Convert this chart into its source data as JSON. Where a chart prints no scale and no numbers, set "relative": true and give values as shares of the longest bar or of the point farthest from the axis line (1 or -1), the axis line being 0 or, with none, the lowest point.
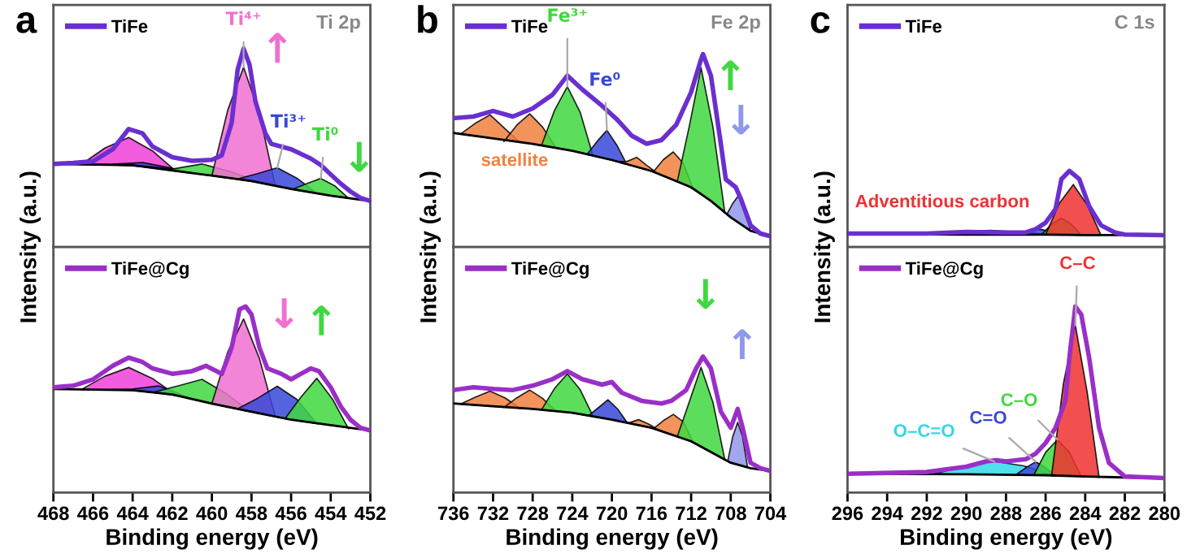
{
  "chart_data": [
    {
      "type": "line",
      "relative": true,
      "xlim": [
        468,
        452
      ],
      "xticks": [
        468,
        466,
        464,
        462,
        460,
        458,
        456,
        454,
        452
      ],
      "tick_labels": false,
      "legend": "top left",
      "annotations": [
        "a",
        "Ti 2p",
        {
          "text": "Ti⁴⁺",
          "x": 458.4,
          "y": 0.906
        },
        {
          "text": "↑",
          "x": 458.4,
          "y": 0.906
        },
        {
          "text": "Ti³⁺",
          "x": 456.7,
          "y": 0.4
        },
        {
          "text": "Ti⁰",
          "x": 454.5,
          "y": 0.346
        },
        {
          "text": "↓",
          "x": 454.5,
          "y": 0.346
        }
      ],
      "series": [
        {
          "name": "TiFe",
          "color": "#6a2fd0",
          "x": [
            468,
            467,
            466,
            465,
            464.2,
            463.5,
            463,
            462,
            461,
            460,
            459.5,
            459,
            458.7,
            458.4,
            458.1,
            457.8,
            457.3,
            457,
            456,
            455,
            454.5,
            454,
            453.5,
            453,
            452.5,
            452
          ],
          "values": [
            0.419,
            0.424,
            0.432,
            0.493,
            0.595,
            0.573,
            0.507,
            0.453,
            0.435,
            0.44,
            0.462,
            0.627,
            0.893,
            1,
            0.92,
            0.734,
            0.573,
            0.52,
            0.493,
            0.446,
            0.413,
            0.366,
            0.32,
            0.28,
            0.248,
            0.232
          ]
        },
        {
          "type": "line",
          "color": "#000000",
          "x": [
            468,
            464,
            462,
            460,
            458,
            456,
            454,
            452
          ],
          "values": [
            0.419,
            0.413,
            0.386,
            0.36,
            0.333,
            0.293,
            0.259,
            0.232
          ]
        },
        {
          "type": "area",
          "color": "#f040d8",
          "x": [
            466.6,
            465.4,
            464.2,
            463.0,
            461.8
          ],
          "values": [
            0.416,
            0.499,
            0.552,
            0.485,
            0.381
          ]
        },
        {
          "type": "area",
          "color": "#3848d8",
          "x": [
            466,
            465,
            463.5,
            462,
            461
          ],
          "values": [
            0.416,
            0.418,
            0.426,
            0.397,
            0.373
          ]
        },
        {
          "type": "area",
          "color": "#40d840",
          "x": [
            463.5,
            462,
            460.5,
            459,
            457.5
          ],
          "values": [
            0.409,
            0.393,
            0.419,
            0.378,
            0.324
          ]
        },
        {
          "type": "area",
          "color": "#f070d0",
          "x": [
            460,
            459.2,
            458.4,
            457.6,
            456.8
          ],
          "values": [
            0.36,
            0.69,
            0.906,
            0.674,
            0.309
          ]
        },
        {
          "type": "area",
          "color": "#3848d8",
          "x": [
            458.7,
            457.7,
            456.7,
            455.7,
            454.7
          ],
          "values": [
            0.343,
            0.37,
            0.4,
            0.347,
            0.27
          ]
        },
        {
          "type": "area",
          "color": "#40d840",
          "x": [
            455.9,
            455.2,
            454.5,
            453.8,
            453.1
          ],
          "values": [
            0.292,
            0.32,
            0.346,
            0.309,
            0.246
          ]
        }
      ]
    },
    {
      "type": "line",
      "relative": true,
      "xlim": [
        468,
        452
      ],
      "xticks": [
        468,
        466,
        464,
        462,
        460,
        458,
        456,
        454,
        452
      ],
      "tick_labels": "x",
      "xlabel": "Binding energy (eV)",
      "ylabel": "Intensity (a.u.)",
      "legend": "top left",
      "annotations": [
        {
          "text": "↓",
          "x": 458.4,
          "y": 0.933
        },
        {
          "text": "↑",
          "x": 454.7,
          "y": 0.614
        }
      ],
      "series": [
        {
          "name": "TiFe@Cg",
          "color": "#9a2fc8",
          "x": [
            468,
            467,
            466,
            465,
            464.2,
            463.5,
            463,
            462,
            461,
            460.3,
            459.5,
            459,
            458.6,
            458.3,
            458,
            457.6,
            457.2,
            456.5,
            456,
            455.5,
            455,
            454.6,
            454,
            453.5,
            453,
            452.5,
            452
          ],
          "values": [
            0.565,
            0.574,
            0.608,
            0.681,
            0.725,
            0.701,
            0.667,
            0.638,
            0.652,
            0.681,
            0.638,
            0.779,
            0.985,
            1,
            0.957,
            0.779,
            0.667,
            0.638,
            0.608,
            0.638,
            0.667,
            0.652,
            0.565,
            0.464,
            0.391,
            0.348,
            0.333
          ]
        },
        {
          "type": "line",
          "color": "#000000",
          "x": [
            468,
            464,
            462,
            460,
            458,
            456,
            454,
            452
          ],
          "values": [
            0.556,
            0.55,
            0.527,
            0.478,
            0.434,
            0.391,
            0.362,
            0.333
          ]
        },
        {
          "type": "area",
          "color": "#f040d8",
          "x": [
            466.6,
            465.4,
            464.2,
            463.0,
            461.8
          ],
          "values": [
            0.553,
            0.625,
            0.672,
            0.613,
            0.522
          ]
        },
        {
          "type": "area",
          "color": "#3848d8",
          "x": [
            465.5,
            464,
            462.7,
            462,
            461
          ],
          "values": [
            0.552,
            0.556,
            0.573,
            0.546,
            0.502
          ]
        },
        {
          "type": "area",
          "color": "#40d840",
          "x": [
            462.9,
            461.7,
            460.5,
            459.3,
            458.1
          ],
          "values": [
            0.54,
            0.573,
            0.608,
            0.533,
            0.436
          ]
        },
        {
          "type": "area",
          "color": "#f070d0",
          "x": [
            460,
            459.2,
            458.4,
            457.6,
            456.8
          ],
          "values": [
            0.478,
            0.755,
            0.933,
            0.72,
            0.408
          ]
        },
        {
          "type": "area",
          "color": "#3848d8",
          "x": [
            458.7,
            457.7,
            456.7,
            455.7,
            454.7
          ],
          "values": [
            0.45,
            0.506,
            0.571,
            0.5,
            0.369
          ]
        },
        {
          "type": "area",
          "color": "#40d840",
          "x": [
            456.3,
            455.5,
            454.7,
            453.9,
            453.1
          ],
          "values": [
            0.398,
            0.513,
            0.614,
            0.5,
            0.342
          ]
        }
      ]
    },
    {
      "type": "line",
      "relative": true,
      "xlim": [
        736,
        704
      ],
      "xticks": [
        736,
        732,
        728,
        724,
        720,
        716,
        712,
        708,
        704
      ],
      "tick_labels": false,
      "legend": "top left",
      "annotations": [
        "b",
        "Fe 2p",
        {
          "text": "Fe³⁺",
          "x": 724.5,
          "y": 0.831
        },
        {
          "text": "Fe⁰",
          "x": 720.5,
          "y": 0.605
        },
        {
          "text": "satellite",
          "x": 735.3,
          "y": 0.585
        },
        {
          "text": "↑",
          "x": 711,
          "y": 0.929
        },
        {
          "text": "↓",
          "x": 707.2,
          "y": 0.268
        }
      ],
      "series": [
        {
          "name": "TiFe",
          "color": "#6a2fd0",
          "x": [
            736,
            734,
            732,
            730,
            728,
            726,
            724.5,
            723,
            721,
            719.5,
            718,
            716.5,
            715,
            713.5,
            712,
            711,
            710.8,
            710,
            709,
            708.5,
            707.5,
            707,
            706,
            705,
            704
          ],
          "values": [
            0.668,
            0.676,
            0.705,
            0.676,
            0.718,
            0.789,
            0.888,
            0.817,
            0.732,
            0.662,
            0.577,
            0.535,
            0.554,
            0.634,
            0.803,
            0.972,
            1,
            0.888,
            0.535,
            0.351,
            0.31,
            0.253,
            0.113,
            0.07,
            0.056
          ]
        },
        {
          "type": "line",
          "color": "#000000",
          "x": [
            736,
            732,
            728,
            724,
            720,
            716,
            712,
            710,
            708,
            706,
            704
          ],
          "values": [
            0.591,
            0.563,
            0.535,
            0.499,
            0.451,
            0.394,
            0.31,
            0.239,
            0.154,
            0.084,
            0.056
          ]
        },
        {
          "type": "area",
          "color": "#f08040",
          "x": [
            735.3,
            733.8,
            732.3,
            730.8,
            729.3
          ],
          "values": [
            0.585,
            0.641,
            0.685,
            0.613,
            0.542
          ]
        },
        {
          "type": "area",
          "color": "#f08040",
          "x": [
            730.9,
            729.6,
            728.3,
            727,
            725.7
          ],
          "values": [
            0.547,
            0.632,
            0.69,
            0.622,
            0.519
          ]
        },
        {
          "type": "area",
          "color": "#40d840",
          "x": [
            727.1,
            725.8,
            724.5,
            723.2,
            721.9
          ],
          "values": [
            0.528,
            0.707,
            0.831,
            0.698,
            0.471
          ]
        },
        {
          "type": "area",
          "color": "#3848d8",
          "x": [
            722.5,
            721.5,
            720.5,
            719.5,
            718.5
          ],
          "values": [
            0.481,
            0.547,
            0.605,
            0.528,
            0.429
          ]
        },
        {
          "type": "area",
          "color": "#f08040",
          "x": [
            719.5,
            718.5,
            717.5,
            716.5,
            715.5
          ],
          "values": [
            0.443,
            0.443,
            0.465,
            0.424,
            0.386
          ]
        },
        {
          "type": "area",
          "color": "#f08040",
          "x": [
            715.8,
            714.8,
            713.8,
            712.8,
            711.8
          ],
          "values": [
            0.391,
            0.453,
            0.493,
            0.434,
            0.301
          ]
        },
        {
          "type": "area",
          "color": "#40d840",
          "x": [
            713.4,
            712.2,
            711,
            709.8,
            708.6
          ],
          "values": [
            0.339,
            0.622,
            0.929,
            0.622,
            0.179
          ]
        },
        {
          "type": "area",
          "color": "#8f98ea",
          "x": [
            708.4,
            707.8,
            707.2,
            706.6,
            706
          ],
          "values": [
            0.169,
            0.226,
            0.268,
            0.207,
            0.084
          ]
        }
      ]
    },
    {
      "type": "line",
      "relative": true,
      "xlim": [
        736,
        704
      ],
      "xticks": [
        736,
        732,
        728,
        724,
        720,
        716,
        712,
        708,
        704
      ],
      "tick_labels": "x",
      "xlabel": "Binding energy (eV)",
      "ylabel": "Intensity (a.u.)",
      "legend": "top left",
      "annotations": [
        {
          "text": "↓",
          "x": 711,
          "y": 0.921
        },
        {
          "text": "↑",
          "x": 707.3,
          "y": 0.516
        }
      ],
      "series": [
        {
          "name": "TiFe@Cg",
          "color": "#9a2fc8",
          "x": [
            736,
            734,
            732,
            730,
            728,
            726,
            724.5,
            723,
            721,
            720,
            719,
            717,
            715,
            714,
            712.5,
            711.5,
            710.8,
            710,
            709,
            708,
            707.3,
            706.8,
            706,
            705,
            704
          ],
          "values": [
            0.754,
            0.774,
            0.762,
            0.754,
            0.786,
            0.834,
            0.893,
            0.834,
            0.794,
            0.813,
            0.734,
            0.675,
            0.655,
            0.675,
            0.754,
            0.913,
            1,
            0.913,
            0.596,
            0.476,
            0.615,
            0.476,
            0.219,
            0.179,
            0.159
          ]
        },
        {
          "type": "line",
          "color": "#000000",
          "x": [
            736,
            732,
            728,
            724,
            720,
            716,
            712,
            710,
            708,
            706,
            704
          ],
          "values": [
            0.655,
            0.635,
            0.615,
            0.587,
            0.536,
            0.476,
            0.377,
            0.298,
            0.219,
            0.179,
            0.159
          ]
        },
        {
          "type": "area",
          "color": "#f08040",
          "x": [
            735.3,
            733.8,
            732.3,
            730.8,
            729.3
          ],
          "values": [
            0.65,
            0.701,
            0.746,
            0.697,
            0.622
          ]
        },
        {
          "type": "area",
          "color": "#f08040",
          "x": [
            730.9,
            729.6,
            728.3,
            727,
            725.7
          ],
          "values": [
            0.626,
            0.697,
            0.754,
            0.693,
            0.601
          ]
        },
        {
          "type": "area",
          "color": "#40d840",
          "x": [
            727.1,
            725.8,
            724.5,
            723.2,
            721.9
          ],
          "values": [
            0.609,
            0.765,
            0.873,
            0.756,
            0.561
          ]
        },
        {
          "type": "area",
          "color": "#3848d8",
          "x": [
            722.4,
            721.4,
            720.4,
            719.4,
            718.4
          ],
          "values": [
            0.563,
            0.622,
            0.683,
            0.613,
            0.508
          ]
        },
        {
          "type": "area",
          "color": "#f08040",
          "x": [
            719.3,
            718.3,
            717.3,
            716.3,
            715.3
          ],
          "values": [
            0.525,
            0.512,
            0.536,
            0.504,
            0.462
          ]
        },
        {
          "type": "area",
          "color": "#f08040",
          "x": [
            715.8,
            714.8,
            713.8,
            712.8,
            711.8
          ],
          "values": [
            0.47,
            0.529,
            0.575,
            0.521,
            0.369
          ]
        },
        {
          "type": "area",
          "color": "#40d840",
          "x": [
            713.4,
            712.2,
            711,
            709.8,
            708.6
          ],
          "values": [
            0.411,
            0.664,
            0.921,
            0.664,
            0.243
          ]
        },
        {
          "type": "area",
          "color": "#8f98ea",
          "x": [
            708.3,
            707.8,
            707.3,
            706.8,
            706.3
          ],
          "values": [
            0.231,
            0.411,
            0.516,
            0.411,
            0.184
          ]
        }
      ]
    },
    {
      "type": "line",
      "relative": true,
      "xlim": [
        296,
        280
      ],
      "xticks": [
        296,
        294,
        292,
        290,
        288,
        286,
        284,
        282,
        280
      ],
      "tick_labels": false,
      "legend": "top left",
      "annotations": [
        "c",
        "C 1s",
        {
          "text": "Adventitious carbon",
          "x": 284.6,
          "y": 0.821
        }
      ],
      "series": [
        {
          "name": "TiFe",
          "color": "#6a2fd0",
          "x": [
            296,
            292,
            290,
            288,
            287,
            286.5,
            286,
            285.5,
            285.2,
            284.8,
            284.3,
            283.8,
            283.2,
            282.5,
            282,
            280
          ],
          "values": [
            0.178,
            0.178,
            0.2,
            0.192,
            0.192,
            0.235,
            0.321,
            0.5,
            0.893,
            1,
            0.893,
            0.536,
            0.286,
            0.192,
            0.164,
            0.157
          ]
        },
        {
          "type": "line",
          "color": "#000000",
          "x": [
            296,
            290,
            286,
            284,
            282,
            280
          ],
          "values": [
            0.171,
            0.164,
            0.164,
            0.157,
            0.157,
            0.157
          ]
        },
        {
          "type": "area",
          "color": "#30d8e8",
          "x": [
            291.8,
            290.3,
            288.8,
            287.3,
            285.8
          ],
          "values": [
            0.167,
            0.199,
            0.221,
            0.199,
            0.164
          ]
        },
        {
          "type": "area",
          "color": "#3848d8",
          "x": [
            287.3,
            286.8,
            286.3,
            285.8,
            285.3
          ],
          "values": [
            0.164,
            0.208,
            0.235,
            0.208,
            0.164
          ]
        },
        {
          "type": "area",
          "color": "#40d840",
          "x": [
            286.2,
            285.7,
            285.2,
            284.7,
            284.2
          ],
          "values": [
            0.164,
            0.3,
            0.379,
            0.3,
            0.157
          ]
        },
        {
          "type": "area",
          "color": "#f03030",
          "x": [
            286,
            285.3,
            284.6,
            283.9,
            283.2
          ],
          "values": [
            0.164,
            0.579,
            0.821,
            0.553,
            0.157
          ]
        }
      ]
    },
    {
      "type": "line",
      "relative": true,
      "xlim": [
        296,
        280
      ],
      "xticks": [
        296,
        294,
        292,
        290,
        288,
        286,
        284,
        282,
        280
      ],
      "tick_labels": "x",
      "xlabel": "Binding energy (eV)",
      "ylabel": "Intensity (a.u.)",
      "legend": "top left",
      "annotations": [
        {
          "text": "C–C",
          "x": 284.5,
          "y": 0.899
        },
        {
          "text": "C–O",
          "x": 285.4,
          "y": 0.284
        },
        {
          "text": "C=O",
          "x": 286.5,
          "y": 0.165
        },
        {
          "text": "O–C=O",
          "x": 288.6,
          "y": 0.167
        }
      ],
      "series": [
        {
          "name": "TiFe@Cg",
          "color": "#9a2fc8",
          "x": [
            296,
            292,
            290,
            289,
            288.5,
            288,
            287,
            286.5,
            286,
            285.5,
            285,
            284.8,
            284.5,
            284.2,
            283.8,
            283.3,
            282.8,
            282,
            280
          ],
          "values": [
            0.101,
            0.11,
            0.139,
            0.167,
            0.174,
            0.167,
            0.179,
            0.209,
            0.266,
            0.347,
            0.493,
            0.724,
            1,
            0.957,
            0.724,
            0.347,
            0.159,
            0.086,
            0.078
          ]
        },
        {
          "type": "line",
          "color": "#000000",
          "x": [
            296,
            290,
            286,
            284,
            282,
            280
          ],
          "values": [
            0.101,
            0.098,
            0.093,
            0.086,
            0.081,
            0.078
          ]
        },
        {
          "type": "area",
          "color": "#30d8e8",
          "x": [
            291.6,
            290.1,
            288.6,
            287.1,
            285.6
          ],
          "values": [
            0.1,
            0.143,
            0.167,
            0.143,
            0.091
          ]
        },
        {
          "type": "area",
          "color": "#3848d8",
          "x": [
            287.5,
            287,
            286.5,
            286,
            285.5
          ],
          "values": [
            0.095,
            0.133,
            0.165,
            0.133,
            0.091
          ]
        },
        {
          "type": "area",
          "color": "#40d840",
          "x": [
            286.6,
            286,
            285.4,
            284.8,
            284.2
          ],
          "values": [
            0.093,
            0.216,
            0.284,
            0.216,
            0.085
          ]
        },
        {
          "type": "area",
          "color": "#f03030",
          "x": [
            285.7,
            285.1,
            284.5,
            283.9,
            283.3
          ],
          "values": [
            0.091,
            0.585,
            0.899,
            0.539,
            0.082
          ]
        }
      ]
    }
  ]
}
